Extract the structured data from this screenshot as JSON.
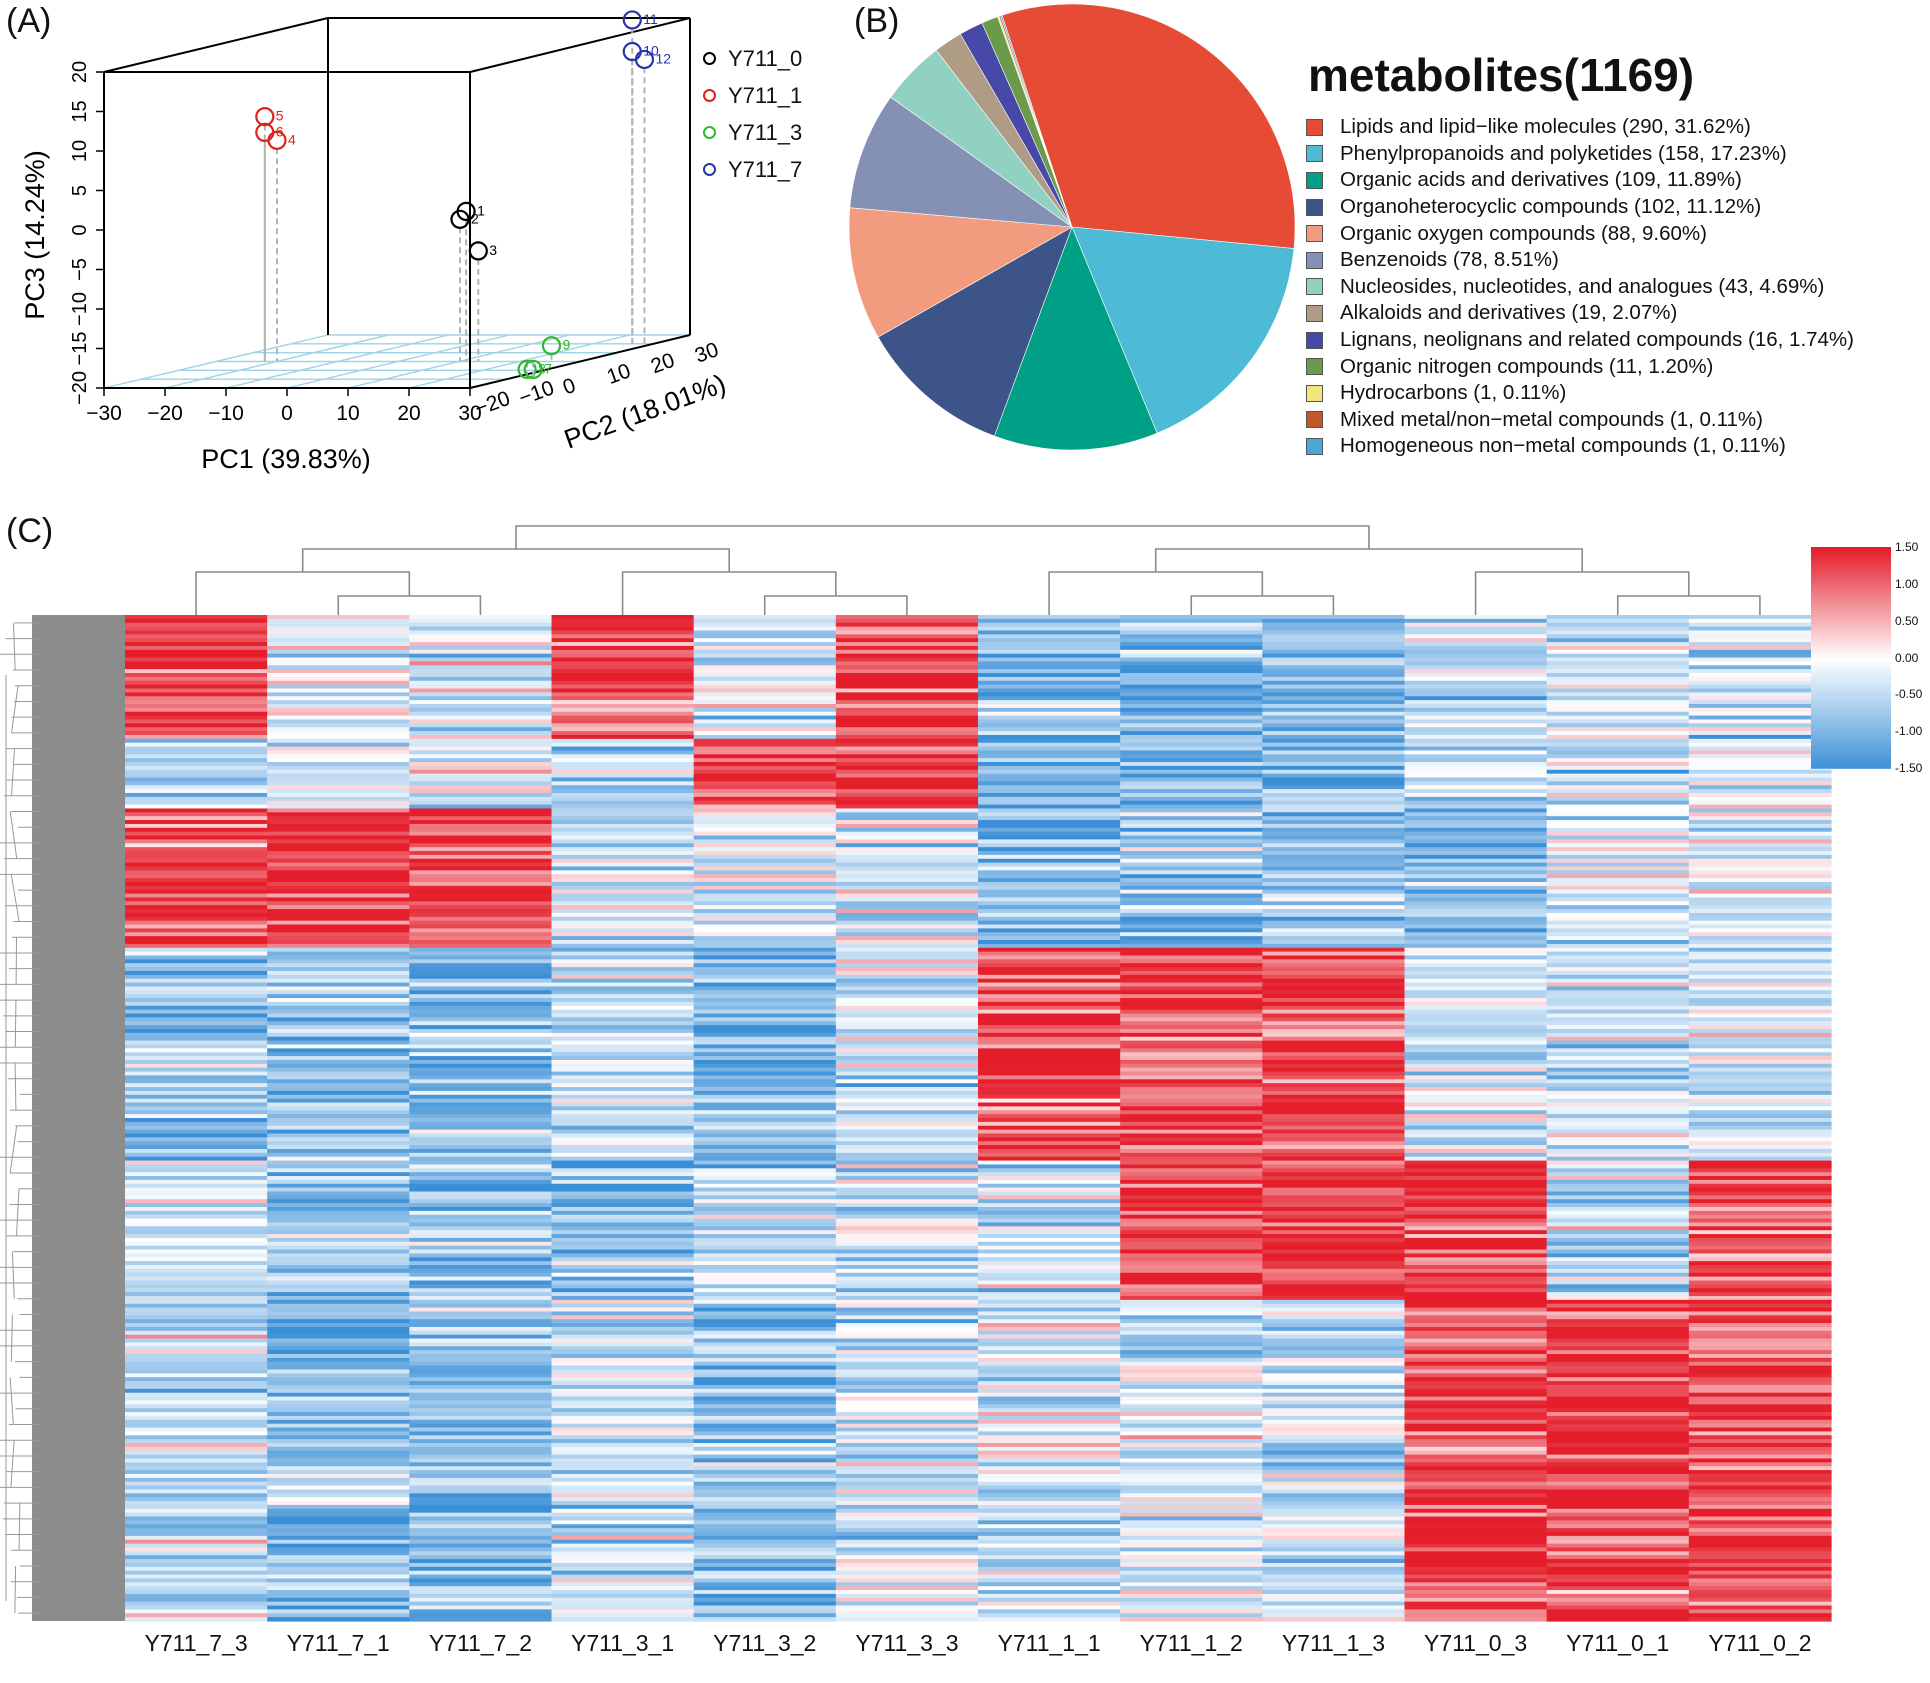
{
  "panel_labels": {
    "a": "(A)",
    "b": "(B)",
    "c": "(C)"
  },
  "chart_data": [
    {
      "type": "scatter3d",
      "panel": "(A)",
      "xlabel": "PC1 (39.83%)",
      "ylabel": "PC2 (18.01%)",
      "zlabel": "PC3 (14.24%)",
      "xlim": [
        -30,
        30
      ],
      "ylim": [
        -30,
        30
      ],
      "zlim": [
        -20,
        20
      ],
      "x_ticks": [
        "−30",
        "−20",
        "−10",
        "0",
        "10",
        "20",
        "30"
      ],
      "y_ticks": [
        "−20",
        "−10",
        "0",
        "10",
        "20",
        "30"
      ],
      "z_ticks": [
        "20",
        "15",
        "10",
        "5",
        "0",
        "−5",
        "−10",
        "−15",
        "−20"
      ],
      "groups": [
        {
          "name": "Y711_0",
          "color": "#000000",
          "points": [
            {
              "label": "1",
              "x": 11,
              "y": 0,
              "z": -1
            },
            {
              "label": "2",
              "x": 10,
              "y": 0,
              "z": -2
            },
            {
              "label": "3",
              "x": 13,
              "y": 0,
              "z": -6
            }
          ]
        },
        {
          "name": "Y711_1",
          "color": "#e0201b",
          "points": [
            {
              "label": "5",
              "x": -22,
              "y": 0,
              "z": 11
            },
            {
              "label": "6",
              "x": -22,
              "y": 0,
              "z": 9
            },
            {
              "label": "4",
              "x": -20,
              "y": 0,
              "z": 8
            }
          ]
        },
        {
          "name": "Y711_3",
          "color": "#2eb82e",
          "points": [
            {
              "label": "9",
              "x": 25,
              "y": 0,
              "z": -18
            },
            {
              "label": "8",
              "x": 21,
              "y": 0,
              "z": -21
            },
            {
              "label": "7",
              "x": 22,
              "y": 0,
              "z": -21
            }
          ]
        },
        {
          "name": "Y711_7",
          "color": "#2a35a8",
          "points": [
            {
              "label": "11",
              "x": 26,
              "y": 20,
              "z": 21
            },
            {
              "label": "10",
              "x": 26,
              "y": 20,
              "z": 17
            },
            {
              "label": "12",
              "x": 28,
              "y": 20,
              "z": 16
            }
          ]
        }
      ]
    },
    {
      "type": "pie",
      "panel": "(B)",
      "title": "metabolites(1169)",
      "slices": [
        {
          "label": "Lipids and lipid−like molecules",
          "count": "290",
          "pct": "31.62%",
          "value": 31.62,
          "color": "#e64b35"
        },
        {
          "label": "Phenylpropanoids and polyketides",
          "count": "158",
          "pct": "17.23%",
          "value": 17.23,
          "color": "#4dbbd5"
        },
        {
          "label": "Organic acids and derivatives",
          "count": "109",
          "pct": "11.89%",
          "value": 11.89,
          "color": "#00a087"
        },
        {
          "label": "Organoheterocyclic compounds",
          "count": "102",
          "pct": "11.12%",
          "value": 11.12,
          "color": "#3c5488"
        },
        {
          "label": "Organic oxygen compounds",
          "count": "88",
          "pct": "9.60%",
          "value": 9.6,
          "color": "#f39b7f"
        },
        {
          "label": "Benzenoids",
          "count": "78",
          "pct": "8.51%",
          "value": 8.51,
          "color": "#8491b4"
        },
        {
          "label": "Nucleosides, nucleotides, and analogues",
          "count": "43",
          "pct": "4.69%",
          "value": 4.69,
          "color": "#91d1c2"
        },
        {
          "label": "Alkaloids and derivatives",
          "count": "19",
          "pct": "2.07%",
          "value": 2.07,
          "color": "#b09c85"
        },
        {
          "label": "Lignans, neolignans and related compounds",
          "count": "16",
          "pct": "1.74%",
          "value": 1.74,
          "color": "#4848a8"
        },
        {
          "label": "Organic nitrogen compounds",
          "count": "11",
          "pct": "1.20%",
          "value": 1.2,
          "color": "#6a9a4c"
        },
        {
          "label": "Hydrocarbons",
          "count": "1",
          "pct": "0.11%",
          "value": 0.11,
          "color": "#f2e67a"
        },
        {
          "label": "Mixed metal/non−metal compounds",
          "count": "1",
          "pct": "0.11%",
          "value": 0.11,
          "color": "#c0582b"
        },
        {
          "label": "Homogeneous non−metal compounds",
          "count": "1",
          "pct": "0.11%",
          "value": 0.11,
          "color": "#4aa8d8"
        }
      ]
    },
    {
      "type": "heatmap",
      "panel": "(C)",
      "columns": [
        "Y711_7_3",
        "Y711_7_1",
        "Y711_7_2",
        "Y711_3_1",
        "Y711_3_2",
        "Y711_3_3",
        "Y711_1_1",
        "Y711_1_2",
        "Y711_1_3",
        "Y711_0_3",
        "Y711_0_1",
        "Y711_0_2"
      ],
      "column_groups": [
        {
          "name": "Y711_7",
          "columns": [
            "Y711_7_3",
            "Y711_7_1",
            "Y711_7_2"
          ]
        },
        {
          "name": "Y711_3",
          "columns": [
            "Y711_3_1",
            "Y711_3_2",
            "Y711_3_3"
          ]
        },
        {
          "name": "Y711_1",
          "columns": [
            "Y711_1_1",
            "Y711_1_2",
            "Y711_1_3"
          ]
        },
        {
          "name": "Y711_0",
          "columns": [
            "Y711_0_3",
            "Y711_0_1",
            "Y711_0_2"
          ]
        }
      ],
      "row_count": 1169,
      "block_pattern": [
        {
          "rows": "top",
          "high_in": [
            "Y711_7_3",
            "Y711_3_1",
            "Y711_3_3"
          ]
        },
        {
          "rows": "upper",
          "high_in": [
            "Y711_3_2",
            "Y711_3_3"
          ]
        },
        {
          "rows": "upper-middle",
          "high_in": [
            "Y711_7_3",
            "Y711_7_1",
            "Y711_7_2"
          ]
        },
        {
          "rows": "middle",
          "high_in": [
            "Y711_1_1",
            "Y711_1_2",
            "Y711_1_3"
          ]
        },
        {
          "rows": "lower",
          "high_in": [
            "Y711_0_3",
            "Y711_0_1",
            "Y711_0_2"
          ]
        }
      ],
      "colorbar": {
        "min": -1.5,
        "max": 1.5,
        "ticks": [
          "1.50",
          "1.00",
          "0.50",
          "0.00",
          "-0.50",
          "-1.00",
          "-1.50"
        ],
        "low_color": "#3b8fd6",
        "mid_color": "#ffffff",
        "high_color": "#e41e2b"
      }
    }
  ]
}
